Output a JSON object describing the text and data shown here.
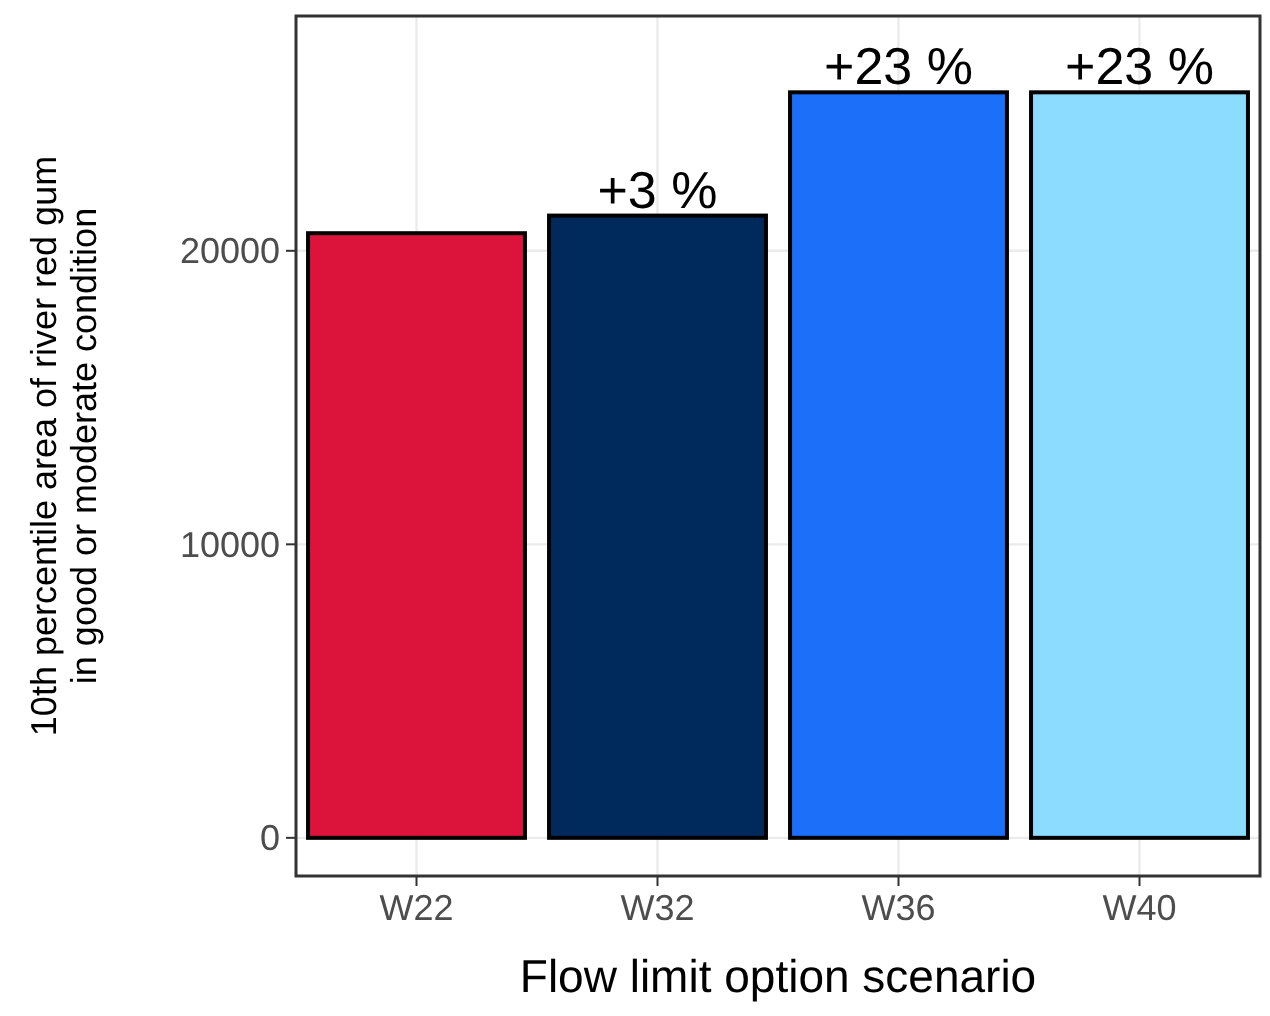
{
  "chart_data": {
    "type": "bar",
    "xlabel": "Flow limit option scenario",
    "ylabel": "10th percentile area of river red gum\nin good or moderate condition",
    "categories": [
      "W22",
      "W32",
      "W36",
      "W40"
    ],
    "values": [
      20600,
      21200,
      25400,
      25400
    ],
    "colors": [
      "#dc143c",
      "#002a5c",
      "#1c6ff8",
      "#8cdcff"
    ],
    "annotations": [
      {
        "text": "+3 %",
        "x": "W32",
        "y": 21200
      },
      {
        "text": "+23 %",
        "x": "W36",
        "y": 25400
      },
      {
        "text": "+23 %",
        "x": "W40",
        "y": 25400
      }
    ],
    "ylim": [
      -1300,
      28000
    ],
    "yticks": [
      0,
      10000,
      20000
    ],
    "grid": true
  }
}
